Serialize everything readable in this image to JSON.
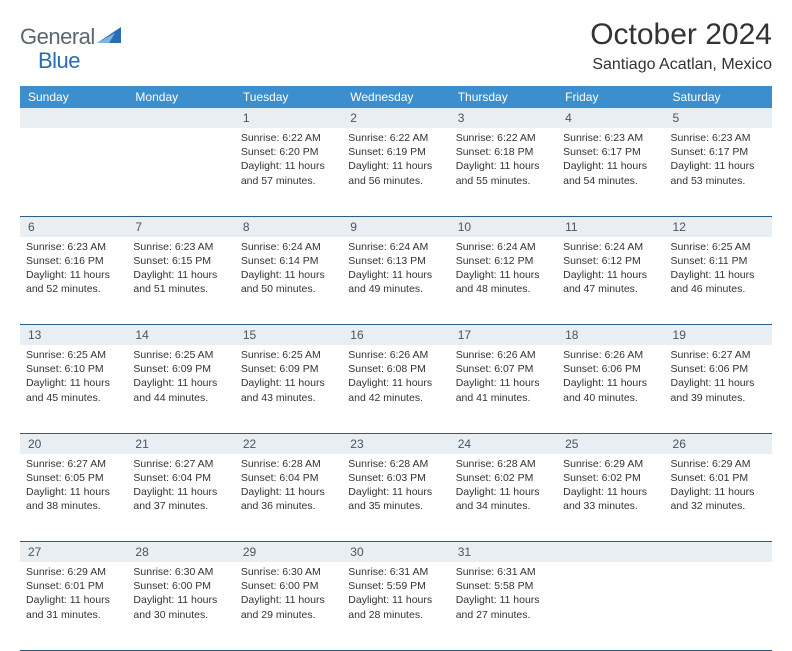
{
  "brand": {
    "name_a": "General",
    "name_b": "Blue"
  },
  "title": "October 2024",
  "location": "Santiago Acatlan, Mexico",
  "colors": {
    "header_bg": "#3d8ecd",
    "header_fg": "#ffffff",
    "daynum_bg": "#e9eef2",
    "row_border": "#2a5d8a",
    "logo_text": "#5a6770",
    "logo_accent": "#2a6db3"
  },
  "daynames": [
    "Sunday",
    "Monday",
    "Tuesday",
    "Wednesday",
    "Thursday",
    "Friday",
    "Saturday"
  ],
  "weeks": [
    [
      null,
      null,
      {
        "n": "1",
        "sr": "6:22 AM",
        "ss": "6:20 PM",
        "dh": "11",
        "dm": "57"
      },
      {
        "n": "2",
        "sr": "6:22 AM",
        "ss": "6:19 PM",
        "dh": "11",
        "dm": "56"
      },
      {
        "n": "3",
        "sr": "6:22 AM",
        "ss": "6:18 PM",
        "dh": "11",
        "dm": "55"
      },
      {
        "n": "4",
        "sr": "6:23 AM",
        "ss": "6:17 PM",
        "dh": "11",
        "dm": "54"
      },
      {
        "n": "5",
        "sr": "6:23 AM",
        "ss": "6:17 PM",
        "dh": "11",
        "dm": "53"
      }
    ],
    [
      {
        "n": "6",
        "sr": "6:23 AM",
        "ss": "6:16 PM",
        "dh": "11",
        "dm": "52"
      },
      {
        "n": "7",
        "sr": "6:23 AM",
        "ss": "6:15 PM",
        "dh": "11",
        "dm": "51"
      },
      {
        "n": "8",
        "sr": "6:24 AM",
        "ss": "6:14 PM",
        "dh": "11",
        "dm": "50"
      },
      {
        "n": "9",
        "sr": "6:24 AM",
        "ss": "6:13 PM",
        "dh": "11",
        "dm": "49"
      },
      {
        "n": "10",
        "sr": "6:24 AM",
        "ss": "6:12 PM",
        "dh": "11",
        "dm": "48"
      },
      {
        "n": "11",
        "sr": "6:24 AM",
        "ss": "6:12 PM",
        "dh": "11",
        "dm": "47"
      },
      {
        "n": "12",
        "sr": "6:25 AM",
        "ss": "6:11 PM",
        "dh": "11",
        "dm": "46"
      }
    ],
    [
      {
        "n": "13",
        "sr": "6:25 AM",
        "ss": "6:10 PM",
        "dh": "11",
        "dm": "45"
      },
      {
        "n": "14",
        "sr": "6:25 AM",
        "ss": "6:09 PM",
        "dh": "11",
        "dm": "44"
      },
      {
        "n": "15",
        "sr": "6:25 AM",
        "ss": "6:09 PM",
        "dh": "11",
        "dm": "43"
      },
      {
        "n": "16",
        "sr": "6:26 AM",
        "ss": "6:08 PM",
        "dh": "11",
        "dm": "42"
      },
      {
        "n": "17",
        "sr": "6:26 AM",
        "ss": "6:07 PM",
        "dh": "11",
        "dm": "41"
      },
      {
        "n": "18",
        "sr": "6:26 AM",
        "ss": "6:06 PM",
        "dh": "11",
        "dm": "40"
      },
      {
        "n": "19",
        "sr": "6:27 AM",
        "ss": "6:06 PM",
        "dh": "11",
        "dm": "39"
      }
    ],
    [
      {
        "n": "20",
        "sr": "6:27 AM",
        "ss": "6:05 PM",
        "dh": "11",
        "dm": "38"
      },
      {
        "n": "21",
        "sr": "6:27 AM",
        "ss": "6:04 PM",
        "dh": "11",
        "dm": "37"
      },
      {
        "n": "22",
        "sr": "6:28 AM",
        "ss": "6:04 PM",
        "dh": "11",
        "dm": "36"
      },
      {
        "n": "23",
        "sr": "6:28 AM",
        "ss": "6:03 PM",
        "dh": "11",
        "dm": "35"
      },
      {
        "n": "24",
        "sr": "6:28 AM",
        "ss": "6:02 PM",
        "dh": "11",
        "dm": "34"
      },
      {
        "n": "25",
        "sr": "6:29 AM",
        "ss": "6:02 PM",
        "dh": "11",
        "dm": "33"
      },
      {
        "n": "26",
        "sr": "6:29 AM",
        "ss": "6:01 PM",
        "dh": "11",
        "dm": "32"
      }
    ],
    [
      {
        "n": "27",
        "sr": "6:29 AM",
        "ss": "6:01 PM",
        "dh": "11",
        "dm": "31"
      },
      {
        "n": "28",
        "sr": "6:30 AM",
        "ss": "6:00 PM",
        "dh": "11",
        "dm": "30"
      },
      {
        "n": "29",
        "sr": "6:30 AM",
        "ss": "6:00 PM",
        "dh": "11",
        "dm": "29"
      },
      {
        "n": "30",
        "sr": "6:31 AM",
        "ss": "5:59 PM",
        "dh": "11",
        "dm": "28"
      },
      {
        "n": "31",
        "sr": "6:31 AM",
        "ss": "5:58 PM",
        "dh": "11",
        "dm": "27"
      },
      null,
      null
    ]
  ],
  "labels": {
    "sunrise": "Sunrise: ",
    "sunset": "Sunset: ",
    "daylight_a": "Daylight: ",
    "hours_word": " hours",
    "and_word": "and ",
    "minutes_word": " minutes."
  }
}
